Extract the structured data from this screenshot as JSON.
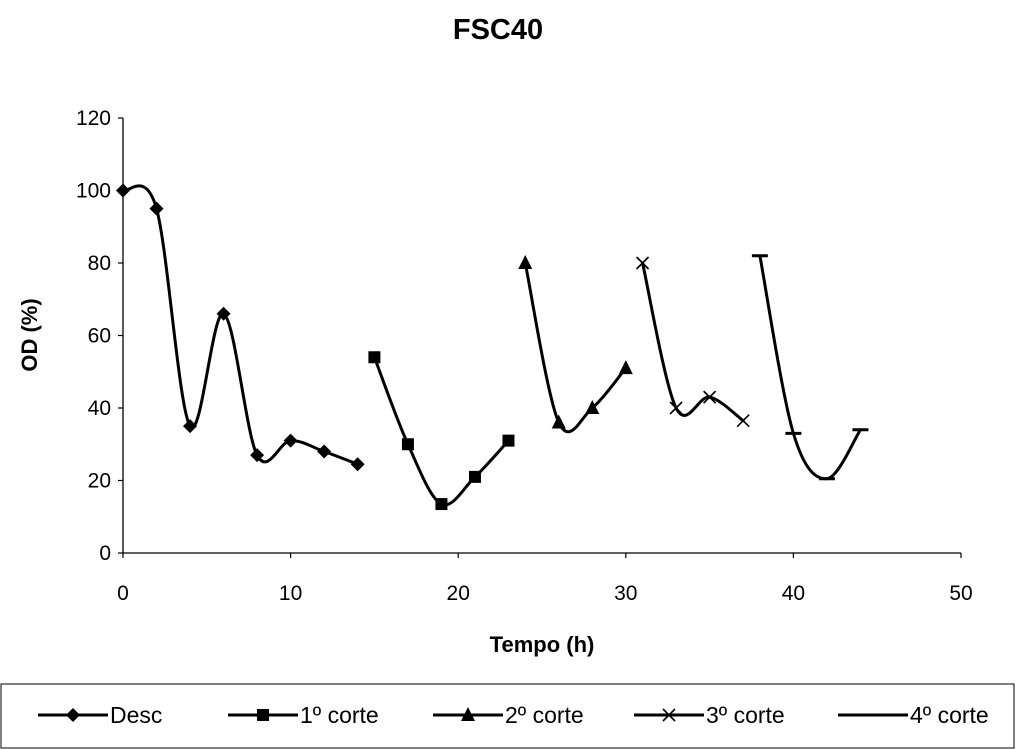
{
  "chart_data": {
    "type": "line",
    "title": "FSC40",
    "xlabel": "Tempo (h)",
    "ylabel": "OD (%)",
    "xlim": [
      0,
      50
    ],
    "ylim": [
      0,
      120
    ],
    "xticks": [
      "0",
      "10",
      "20",
      "30",
      "40",
      "50"
    ],
    "yticks": [
      "0",
      "20",
      "40",
      "60",
      "80",
      "100",
      "120"
    ],
    "grid": false,
    "legend_position": "bottom",
    "series_color": "#000000",
    "series": [
      {
        "name": "Desc",
        "marker": "diamond",
        "x": [
          0,
          2,
          4,
          6,
          8,
          10,
          12,
          14
        ],
        "y": [
          100,
          95,
          35,
          66,
          27,
          31,
          28,
          24.5
        ]
      },
      {
        "name": "1º corte",
        "marker": "square",
        "x": [
          15,
          17,
          19,
          21,
          23
        ],
        "y": [
          54,
          30,
          13.5,
          21,
          31
        ]
      },
      {
        "name": "2º corte",
        "marker": "triangle",
        "x": [
          24,
          26,
          28,
          30
        ],
        "y": [
          80,
          36,
          40,
          51
        ]
      },
      {
        "name": "3º corte",
        "marker": "x",
        "x": [
          31,
          33,
          35,
          37
        ],
        "y": [
          80,
          40,
          43,
          36.5
        ]
      },
      {
        "name": "4º corte",
        "marker": "dash",
        "x": [
          38,
          40,
          42,
          44
        ],
        "y": [
          82,
          33,
          20.5,
          34
        ]
      }
    ]
  }
}
